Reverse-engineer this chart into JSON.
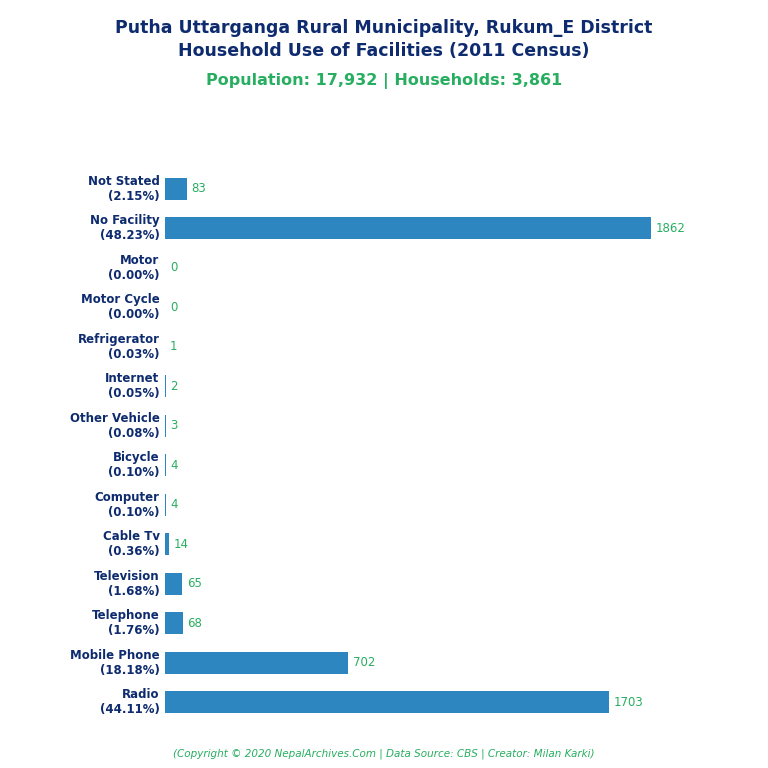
{
  "title_line1": "Putha Uttarganga Rural Municipality, Rukum_E District",
  "title_line2": "Household Use of Facilities (2011 Census)",
  "subtitle": "Population: 17,932 | Households: 3,861",
  "footer": "(Copyright © 2020 NepalArchives.Com | Data Source: CBS | Creator: Milan Karki)",
  "categories": [
    "Not Stated\n(2.15%)",
    "No Facility\n(48.23%)",
    "Motor\n(0.00%)",
    "Motor Cycle\n(0.00%)",
    "Refrigerator\n(0.03%)",
    "Internet\n(0.05%)",
    "Other Vehicle\n(0.08%)",
    "Bicycle\n(0.10%)",
    "Computer\n(0.10%)",
    "Cable Tv\n(0.36%)",
    "Television\n(1.68%)",
    "Telephone\n(1.76%)",
    "Mobile Phone\n(18.18%)",
    "Radio\n(44.11%)"
  ],
  "values": [
    83,
    1862,
    0,
    0,
    1,
    2,
    3,
    4,
    4,
    14,
    65,
    68,
    702,
    1703
  ],
  "bar_color": "#2e86c1",
  "title_color": "#0d2b6e",
  "subtitle_color": "#27ae60",
  "footer_color": "#27ae60",
  "value_color": "#27ae60",
  "ylabel_color": "#0d2b6e",
  "background_color": "#ffffff",
  "figsize": [
    7.68,
    7.68
  ],
  "dpi": 100
}
